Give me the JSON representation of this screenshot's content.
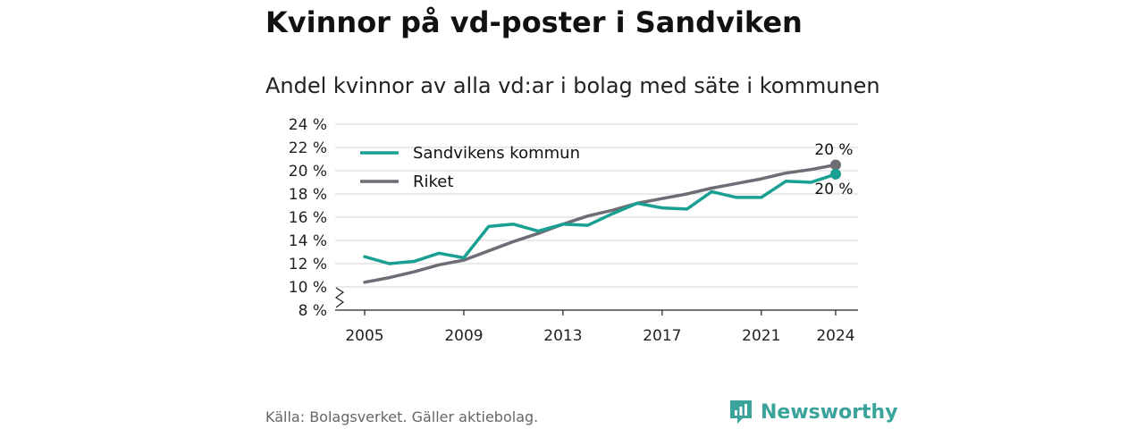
{
  "title": "Kvinnor på vd-poster i Sandviken",
  "subtitle": "Andel kvinnor av alla vd:ar i bolag med säte i kommunen",
  "source": "Källa: Bolagsverket. Gäller aktiebolag.",
  "brand": {
    "name": "Newsworthy",
    "icon": "newsworthy-logo-icon",
    "color": "#3aa39a"
  },
  "chart_data": {
    "type": "line",
    "x": [
      2005,
      2006,
      2007,
      2008,
      2009,
      2010,
      2011,
      2012,
      2013,
      2014,
      2015,
      2016,
      2017,
      2018,
      2019,
      2020,
      2021,
      2022,
      2023,
      2024
    ],
    "series": [
      {
        "name": "Sandvikens kommun",
        "color": "#19a092",
        "values": [
          12.6,
          12.0,
          12.2,
          12.9,
          12.5,
          15.2,
          15.4,
          14.8,
          15.4,
          15.3,
          16.3,
          17.2,
          16.8,
          16.7,
          18.2,
          17.7,
          17.7,
          19.1,
          19.0,
          19.7
        ],
        "end_label": "20 %"
      },
      {
        "name": "Riket",
        "color": "#6e6c74",
        "values": [
          10.4,
          10.8,
          11.3,
          11.9,
          12.3,
          13.1,
          13.9,
          14.6,
          15.4,
          16.1,
          16.6,
          17.2,
          17.6,
          18.0,
          18.5,
          18.9,
          19.3,
          19.8,
          20.1,
          20.5
        ],
        "end_label": "20 %"
      }
    ],
    "xticks": [
      "2005",
      "2009",
      "2013",
      "2017",
      "2021",
      "2024"
    ],
    "yticks": [
      "8 %",
      "10 %",
      "12 %",
      "14 %",
      "16 %",
      "18 %",
      "20 %",
      "22 %",
      "24 %"
    ],
    "ylim": [
      8,
      24
    ],
    "axis_break": true,
    "grid": true,
    "legend": "top-left"
  }
}
